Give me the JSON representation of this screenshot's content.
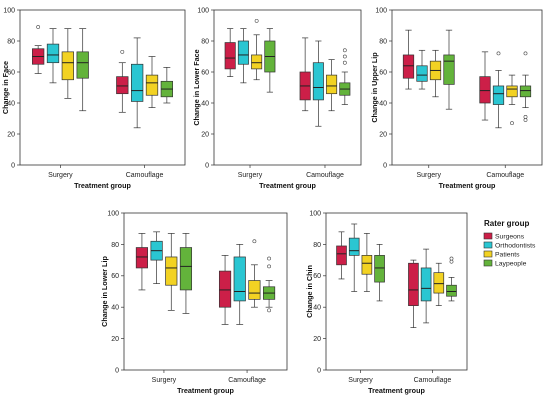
{
  "legend": {
    "title": "Rater group",
    "placement": "right",
    "entries": [
      {
        "name": "Surgeons",
        "color": "#cc1f48"
      },
      {
        "name": "Orthodontists",
        "color": "#2ac6d2"
      },
      {
        "name": "Patients",
        "color": "#f2d223"
      },
      {
        "name": "Laypeople",
        "color": "#63b33b"
      }
    ]
  },
  "chart_data": [
    {
      "type": "boxplot",
      "xlabel": "Treatment group",
      "ylabel": "Change in Face",
      "ylim": [
        0,
        100
      ],
      "yticks": [
        0,
        20,
        40,
        60,
        80,
        100
      ],
      "categories": [
        "Surgery",
        "Camouflage"
      ],
      "grid": false,
      "series": [
        {
          "name": "Surgeons",
          "boxes": [
            {
              "category": "Surgery",
              "min": 59,
              "q1": 65,
              "median": 70,
              "q3": 75,
              "max": 77,
              "outliers": [
                89
              ]
            },
            {
              "category": "Camouflage",
              "min": 34,
              "q1": 46,
              "median": 51,
              "q3": 57,
              "max": 66,
              "outliers": [
                73
              ]
            }
          ]
        },
        {
          "name": "Orthodontists",
          "boxes": [
            {
              "category": "Surgery",
              "min": 53,
              "q1": 66,
              "median": 71,
              "q3": 78,
              "max": 88,
              "outliers": []
            },
            {
              "category": "Camouflage",
              "min": 24,
              "q1": 41,
              "median": 48,
              "q3": 65,
              "max": 82,
              "outliers": []
            }
          ]
        },
        {
          "name": "Patients",
          "boxes": [
            {
              "category": "Surgery",
              "min": 43,
              "q1": 55,
              "median": 66,
              "q3": 73,
              "max": 88,
              "outliers": []
            },
            {
              "category": "Camouflage",
              "min": 37,
              "q1": 45,
              "median": 53,
              "q3": 58,
              "max": 70,
              "outliers": []
            }
          ]
        },
        {
          "name": "Laypeople",
          "boxes": [
            {
              "category": "Surgery",
              "min": 35,
              "q1": 56,
              "median": 66,
              "q3": 73,
              "max": 88,
              "outliers": []
            },
            {
              "category": "Camouflage",
              "min": 40,
              "q1": 44,
              "median": 49,
              "q3": 54,
              "max": 63,
              "outliers": []
            }
          ]
        }
      ]
    },
    {
      "type": "boxplot",
      "xlabel": "Treatment group",
      "ylabel": "Change in Lower Face",
      "ylim": [
        0,
        100
      ],
      "yticks": [
        0,
        20,
        40,
        60,
        80,
        100
      ],
      "categories": [
        "Surgery",
        "Camouflage"
      ],
      "grid": false,
      "series": [
        {
          "name": "Surgeons",
          "boxes": [
            {
              "category": "Surgery",
              "min": 57,
              "q1": 62,
              "median": 69,
              "q3": 79,
              "max": 88,
              "outliers": []
            },
            {
              "category": "Camouflage",
              "min": 35,
              "q1": 42,
              "median": 51,
              "q3": 60,
              "max": 82,
              "outliers": []
            }
          ]
        },
        {
          "name": "Orthodontists",
          "boxes": [
            {
              "category": "Surgery",
              "min": 53,
              "q1": 65,
              "median": 71,
              "q3": 80,
              "max": 88,
              "outliers": []
            },
            {
              "category": "Camouflage",
              "min": 25,
              "q1": 42,
              "median": 50,
              "q3": 66,
              "max": 80,
              "outliers": []
            }
          ]
        },
        {
          "name": "Patients",
          "boxes": [
            {
              "category": "Surgery",
              "min": 55,
              "q1": 62,
              "median": 66,
              "q3": 71,
              "max": 84,
              "outliers": [
                93
              ]
            },
            {
              "category": "Camouflage",
              "min": 35,
              "q1": 46,
              "median": 51,
              "q3": 58,
              "max": 68,
              "outliers": []
            }
          ]
        },
        {
          "name": "Laypeople",
          "boxes": [
            {
              "category": "Surgery",
              "min": 47,
              "q1": 60,
              "median": 70,
              "q3": 80,
              "max": 88,
              "outliers": []
            },
            {
              "category": "Camouflage",
              "min": 39,
              "q1": 45,
              "median": 49,
              "q3": 53,
              "max": 60,
              "outliers": [
                66,
                70,
                74
              ]
            }
          ]
        }
      ]
    },
    {
      "type": "boxplot",
      "xlabel": "Treatment group",
      "ylabel": "Change in Upper Lip",
      "ylim": [
        0,
        100
      ],
      "yticks": [
        0,
        20,
        40,
        60,
        80,
        100
      ],
      "categories": [
        "Surgery",
        "Camouflage"
      ],
      "grid": false,
      "series": [
        {
          "name": "Surgeons",
          "boxes": [
            {
              "category": "Surgery",
              "min": 49,
              "q1": 56,
              "median": 64,
              "q3": 71,
              "max": 87,
              "outliers": []
            },
            {
              "category": "Camouflage",
              "min": 29,
              "q1": 40,
              "median": 48,
              "q3": 57,
              "max": 73,
              "outliers": []
            }
          ]
        },
        {
          "name": "Orthodontists",
          "boxes": [
            {
              "category": "Surgery",
              "min": 49,
              "q1": 54,
              "median": 58,
              "q3": 64,
              "max": 74,
              "outliers": []
            },
            {
              "category": "Camouflage",
              "min": 24,
              "q1": 39,
              "median": 46,
              "q3": 51,
              "max": 61,
              "outliers": [
                72
              ]
            }
          ]
        },
        {
          "name": "Patients",
          "boxes": [
            {
              "category": "Surgery",
              "min": 44,
              "q1": 55,
              "median": 61,
              "q3": 67,
              "max": 74,
              "outliers": []
            },
            {
              "category": "Camouflage",
              "min": 39,
              "q1": 44,
              "median": 49,
              "q3": 51,
              "max": 58,
              "outliers": [
                27
              ]
            }
          ]
        },
        {
          "name": "Laypeople",
          "boxes": [
            {
              "category": "Surgery",
              "min": 36,
              "q1": 52,
              "median": 67,
              "q3": 71,
              "max": 87,
              "outliers": []
            },
            {
              "category": "Camouflage",
              "min": 37,
              "q1": 44,
              "median": 48,
              "q3": 51,
              "max": 58,
              "outliers": [
                29,
                31,
                72
              ]
            }
          ]
        }
      ]
    },
    {
      "type": "boxplot",
      "xlabel": "Treatment group",
      "ylabel": "Change in Lower Lip",
      "ylim": [
        0,
        100
      ],
      "yticks": [
        0,
        20,
        40,
        60,
        80,
        100
      ],
      "categories": [
        "Surgery",
        "Camouflage"
      ],
      "grid": false,
      "series": [
        {
          "name": "Surgeons",
          "boxes": [
            {
              "category": "Surgery",
              "min": 51,
              "q1": 65,
              "median": 72,
              "q3": 78,
              "max": 87,
              "outliers": []
            },
            {
              "category": "Camouflage",
              "min": 29,
              "q1": 40,
              "median": 51,
              "q3": 63,
              "max": 73,
              "outliers": []
            }
          ]
        },
        {
          "name": "Orthodontists",
          "boxes": [
            {
              "category": "Surgery",
              "min": 55,
              "q1": 70,
              "median": 76,
              "q3": 82,
              "max": 88,
              "outliers": []
            },
            {
              "category": "Camouflage",
              "min": 29,
              "q1": 44,
              "median": 50,
              "q3": 72,
              "max": 80,
              "outliers": []
            }
          ]
        },
        {
          "name": "Patients",
          "boxes": [
            {
              "category": "Surgery",
              "min": 38,
              "q1": 54,
              "median": 65,
              "q3": 72,
              "max": 87,
              "outliers": []
            },
            {
              "category": "Camouflage",
              "min": 40,
              "q1": 45,
              "median": 49,
              "q3": 57,
              "max": 67,
              "outliers": [
                82
              ]
            }
          ]
        },
        {
          "name": "Laypeople",
          "boxes": [
            {
              "category": "Surgery",
              "min": 36,
              "q1": 51,
              "median": 66,
              "q3": 78,
              "max": 87,
              "outliers": []
            },
            {
              "category": "Camouflage",
              "min": 40,
              "q1": 45,
              "median": 49,
              "q3": 53,
              "max": 57,
              "outliers": [
                38,
                66,
                71
              ]
            }
          ]
        }
      ]
    },
    {
      "type": "boxplot",
      "xlabel": "Treatment group",
      "ylabel": "Change in Chin",
      "ylim": [
        0,
        100
      ],
      "yticks": [
        0,
        20,
        40,
        60,
        80,
        100
      ],
      "categories": [
        "Surgery",
        "Camouflage"
      ],
      "grid": false,
      "series": [
        {
          "name": "Surgeons",
          "boxes": [
            {
              "category": "Surgery",
              "min": 58,
              "q1": 67,
              "median": 74,
              "q3": 79,
              "max": 88,
              "outliers": []
            },
            {
              "category": "Camouflage",
              "min": 27,
              "q1": 41,
              "median": 51,
              "q3": 68,
              "max": 70,
              "outliers": []
            }
          ]
        },
        {
          "name": "Orthodontists",
          "boxes": [
            {
              "category": "Surgery",
              "min": 50,
              "q1": 73,
              "median": 76,
              "q3": 84,
              "max": 93,
              "outliers": []
            },
            {
              "category": "Camouflage",
              "min": 30,
              "q1": 44,
              "median": 52,
              "q3": 65,
              "max": 77,
              "outliers": []
            }
          ]
        },
        {
          "name": "Patients",
          "boxes": [
            {
              "category": "Surgery",
              "min": 50,
              "q1": 61,
              "median": 68,
              "q3": 73,
              "max": 87,
              "outliers": []
            },
            {
              "category": "Camouflage",
              "min": 41,
              "q1": 49,
              "median": 55,
              "q3": 62,
              "max": 68,
              "outliers": []
            }
          ]
        },
        {
          "name": "Laypeople",
          "boxes": [
            {
              "category": "Surgery",
              "min": 44,
              "q1": 56,
              "median": 65,
              "q3": 73,
              "max": 80,
              "outliers": []
            },
            {
              "category": "Camouflage",
              "min": 44,
              "q1": 47,
              "median": 50,
              "q3": 54,
              "max": 59,
              "outliers": [
                69,
                71
              ]
            }
          ]
        }
      ]
    }
  ]
}
